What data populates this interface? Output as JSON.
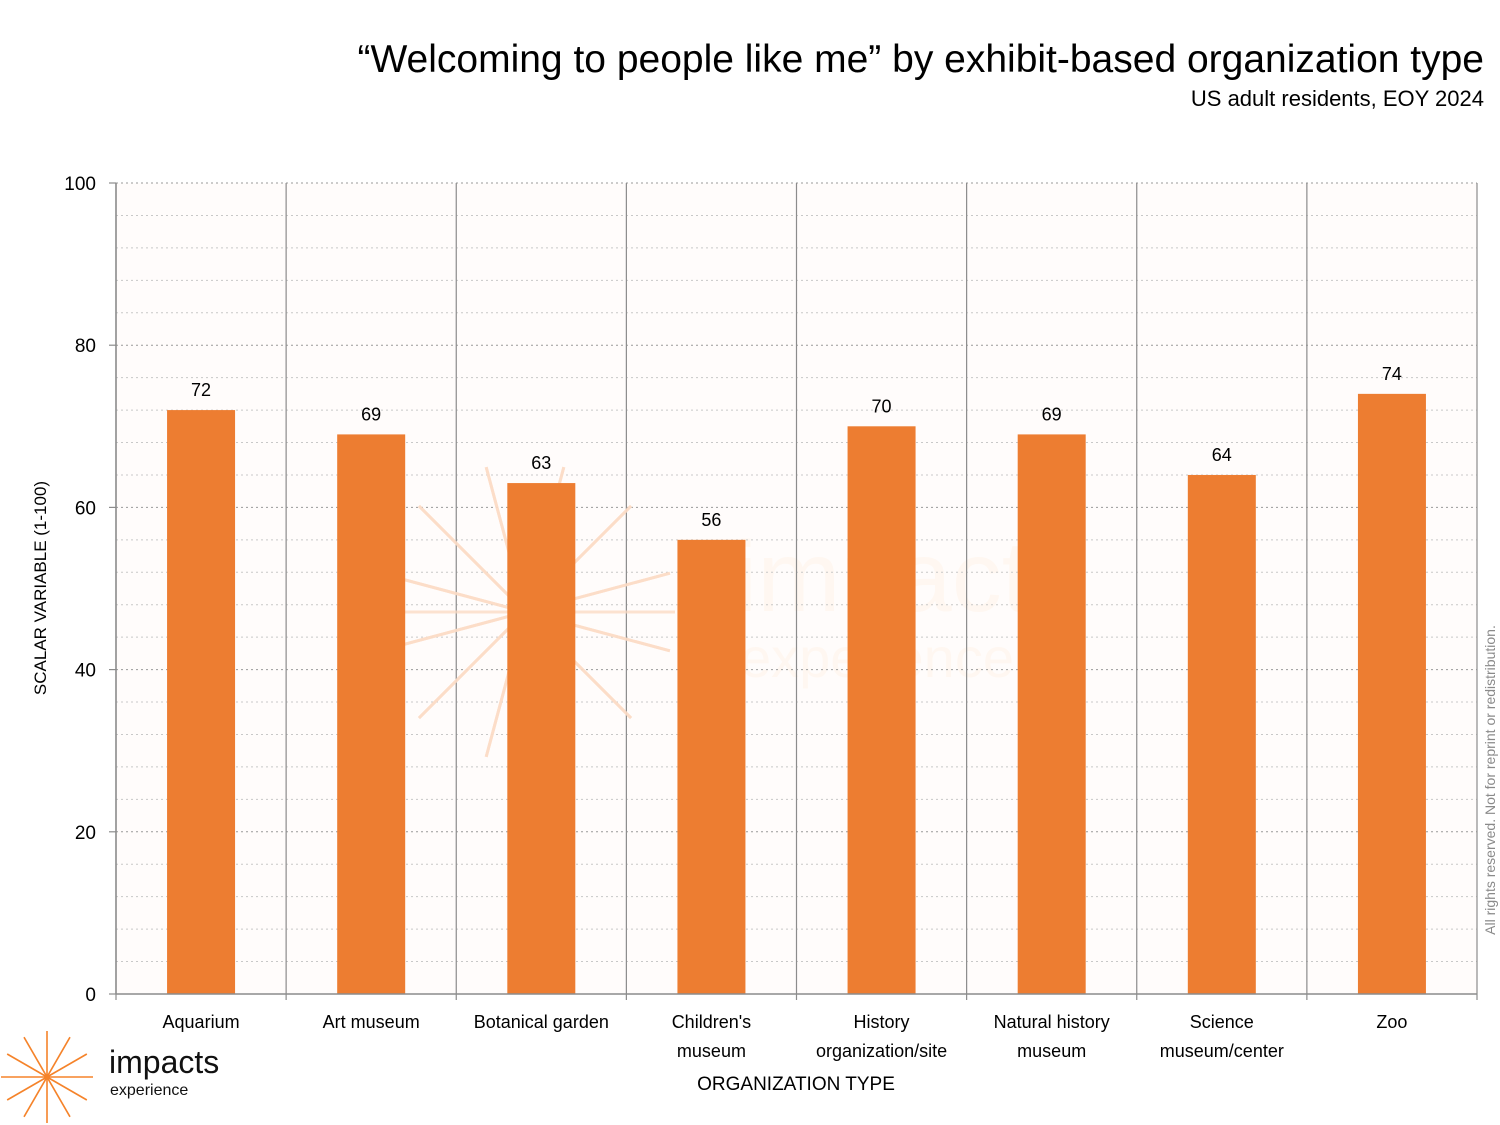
{
  "title": "“Welcoming to people like me” by exhibit-based organization type",
  "subtitle": "US adult residents, EOY 2024",
  "copyright": "All rights reserved. Not for reprint or redistribution.",
  "logo": {
    "word": "impacts",
    "sub": "experience",
    "icon": "sunburst-icon"
  },
  "colors": {
    "bar": "#ED7D31",
    "plot_bg": "#FFFBFA",
    "watermark": "#FDE6CC",
    "logo": "#F5832A"
  },
  "chart_data": {
    "type": "bar",
    "title": "“Welcoming to people like me” by exhibit-based organization type",
    "subtitle": "US adult residents, EOY 2024",
    "xlabel": "ORGANIZATION TYPE",
    "ylabel": "SCALAR VARIABLE (1-100)",
    "categories": [
      [
        "Aquarium"
      ],
      [
        "Art museum"
      ],
      [
        "Botanical garden"
      ],
      [
        "Children's",
        "museum"
      ],
      [
        "History",
        "organization/site"
      ],
      [
        "Natural history",
        "museum"
      ],
      [
        "Science",
        "museum/center"
      ],
      [
        "Zoo"
      ]
    ],
    "values": [
      72,
      69,
      63,
      56,
      70,
      69,
      64,
      74
    ],
    "ylim": [
      0,
      100
    ],
    "yticks": [
      0,
      20,
      40,
      60,
      80,
      100
    ],
    "minor_grid_step": 4,
    "grid": true,
    "legend": "none",
    "data_labels": true
  }
}
